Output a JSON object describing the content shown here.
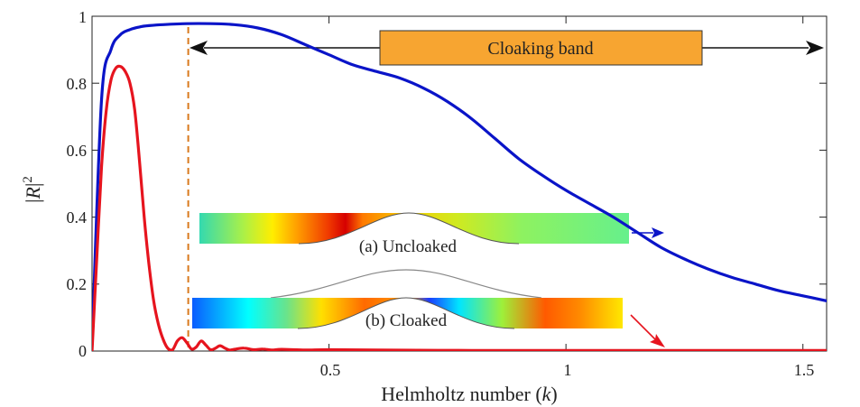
{
  "chart_data": {
    "type": "line",
    "xlabel_main": "Helmholtz number (",
    "xlabel_var": "k",
    "xlabel_end": ")",
    "ylabel_open": "|",
    "ylabel_var": "R",
    "ylabel_close": "|",
    "ylabel_exp": "2",
    "xlim": [
      0,
      1.55
    ],
    "ylim": [
      0,
      1
    ],
    "xticks": [
      0.5,
      1,
      1.5
    ],
    "xtick_labels": [
      "0.5",
      "1",
      "1.5"
    ],
    "yticks": [
      0,
      0.2,
      0.4,
      0.6,
      0.8,
      1
    ],
    "ytick_labels": [
      "0",
      "0.2",
      "0.4",
      "0.6",
      "0.8",
      "1"
    ],
    "grid": false,
    "series": [
      {
        "color": "#0a14c8",
        "x": [
          0.0,
          0.02,
          0.04,
          0.06,
          0.08,
          0.1,
          0.12,
          0.15,
          0.2,
          0.25,
          0.3,
          0.35,
          0.4,
          0.45,
          0.5,
          0.55,
          0.6,
          0.65,
          0.7,
          0.75,
          0.8,
          0.85,
          0.9,
          0.95,
          1.0,
          1.05,
          1.1,
          1.15,
          1.2,
          1.25,
          1.3,
          1.35,
          1.4,
          1.45,
          1.5,
          1.55
        ],
        "y": [
          0.02,
          0.75,
          0.9,
          0.945,
          0.96,
          0.968,
          0.972,
          0.975,
          0.978,
          0.978,
          0.975,
          0.965,
          0.945,
          0.915,
          0.885,
          0.855,
          0.835,
          0.815,
          0.785,
          0.745,
          0.695,
          0.635,
          0.575,
          0.525,
          0.48,
          0.44,
          0.4,
          0.355,
          0.31,
          0.275,
          0.245,
          0.22,
          0.2,
          0.18,
          0.165,
          0.15
        ]
      },
      {
        "color": "#e6141e",
        "x": [
          0.0,
          0.01,
          0.02,
          0.03,
          0.04,
          0.05,
          0.06,
          0.07,
          0.08,
          0.09,
          0.1,
          0.11,
          0.12,
          0.13,
          0.14,
          0.15,
          0.16,
          0.17,
          0.18,
          0.19,
          0.2,
          0.21,
          0.22,
          0.23,
          0.24,
          0.25,
          0.26,
          0.27,
          0.28,
          0.29,
          0.3,
          0.32,
          0.34,
          0.36,
          0.38,
          0.4,
          0.45,
          0.5,
          0.6,
          0.8,
          1.0,
          1.2,
          1.55
        ],
        "y": [
          0.0,
          0.28,
          0.55,
          0.72,
          0.81,
          0.845,
          0.85,
          0.835,
          0.8,
          0.72,
          0.57,
          0.4,
          0.26,
          0.15,
          0.08,
          0.035,
          0.008,
          0.004,
          0.03,
          0.04,
          0.025,
          0.006,
          0.012,
          0.03,
          0.018,
          0.004,
          0.008,
          0.016,
          0.009,
          0.003,
          0.005,
          0.009,
          0.004,
          0.006,
          0.003,
          0.005,
          0.003,
          0.004,
          0.003,
          0.002,
          0.002,
          0.002,
          0.002
        ]
      }
    ],
    "annotations": {
      "band_label": "Cloaking band",
      "uncloaked_label": "(a) Uncloaked",
      "cloaked_label": "(b) Cloaked",
      "band_color": "#f7a531",
      "dashed_line_x": 0.203,
      "dashed_line_color": "#d97a1e"
    }
  }
}
